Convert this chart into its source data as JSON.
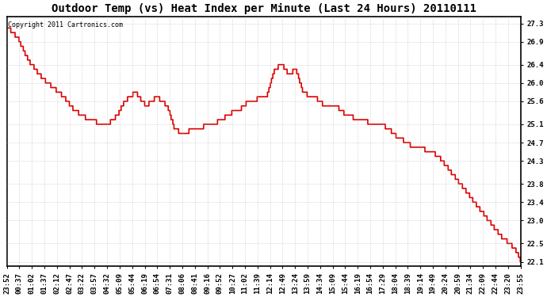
{
  "title": "Outdoor Temp (vs) Heat Index per Minute (Last 24 Hours) 20110111",
  "copyright_text": "Copyright 2011 Cartronics.com",
  "line_color": "#dd0000",
  "bg_color": "#ffffff",
  "plot_bg_color": "#ffffff",
  "grid_color": "#aaaaaa",
  "ylim": [
    22.0,
    27.45
  ],
  "yticks": [
    22.1,
    22.5,
    23.0,
    23.4,
    23.8,
    24.3,
    24.7,
    25.1,
    25.6,
    26.0,
    26.4,
    26.9,
    27.3
  ],
  "xtick_labels": [
    "23:52",
    "00:37",
    "01:02",
    "01:37",
    "02:12",
    "02:47",
    "03:22",
    "03:57",
    "04:32",
    "05:09",
    "05:44",
    "06:19",
    "06:54",
    "07:31",
    "08:06",
    "08:41",
    "09:16",
    "09:52",
    "10:27",
    "11:02",
    "11:39",
    "12:14",
    "12:49",
    "13:24",
    "13:59",
    "14:34",
    "15:09",
    "15:44",
    "16:19",
    "16:54",
    "17:29",
    "18:04",
    "18:39",
    "19:14",
    "19:49",
    "20:24",
    "20:59",
    "21:34",
    "22:09",
    "22:44",
    "23:20",
    "23:55"
  ],
  "title_fontsize": 10,
  "axis_fontsize": 6.5,
  "copyright_fontsize": 6
}
